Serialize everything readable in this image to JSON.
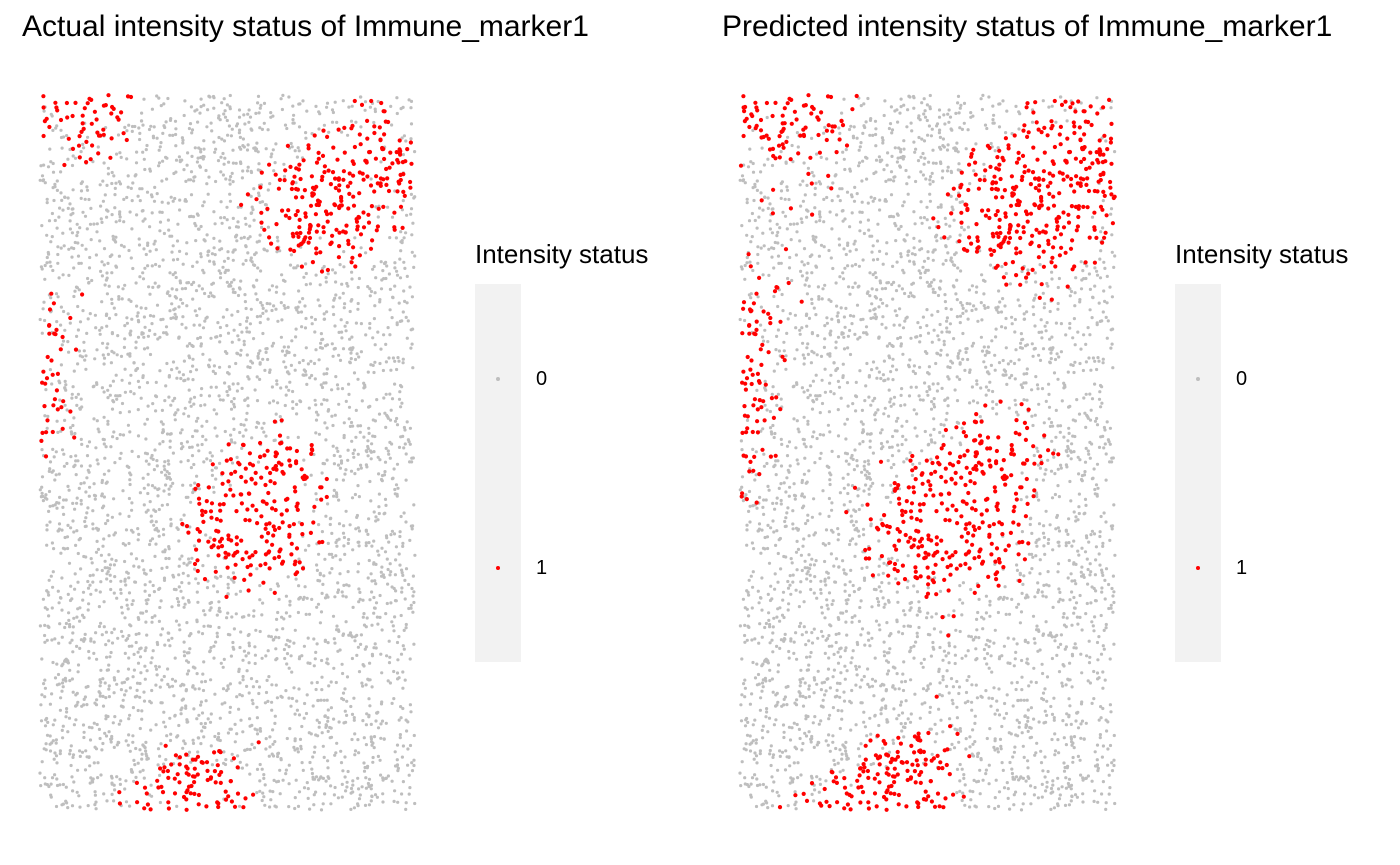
{
  "chart_data": [
    {
      "type": "scatter",
      "title": "Actual intensity status of Immune_marker1",
      "xlabel": "",
      "ylabel": "",
      "grid": false,
      "axes_visible": false,
      "legend": {
        "title": "Intensity status",
        "placement": "right",
        "entries": [
          {
            "label": "0",
            "color": "#bebebe"
          },
          {
            "label": "1",
            "color": "#ff0000"
          }
        ]
      },
      "series": [
        {
          "label": "0",
          "color": "#bebebe",
          "approx_share": 0.62
        },
        {
          "label": "1",
          "color": "#ff0000",
          "approx_share": 0.38
        }
      ]
    },
    {
      "type": "scatter",
      "title": "Predicted intensity status of Immune_marker1",
      "xlabel": "",
      "ylabel": "",
      "grid": false,
      "axes_visible": false,
      "legend": {
        "title": "Intensity status",
        "placement": "right",
        "entries": [
          {
            "label": "0",
            "color": "#bebebe"
          },
          {
            "label": "1",
            "color": "#ff0000"
          }
        ]
      },
      "series": [
        {
          "label": "0",
          "color": "#bebebe",
          "approx_share": 0.58
        },
        {
          "label": "1",
          "color": "#ff0000",
          "approx_share": 0.42
        }
      ]
    }
  ]
}
